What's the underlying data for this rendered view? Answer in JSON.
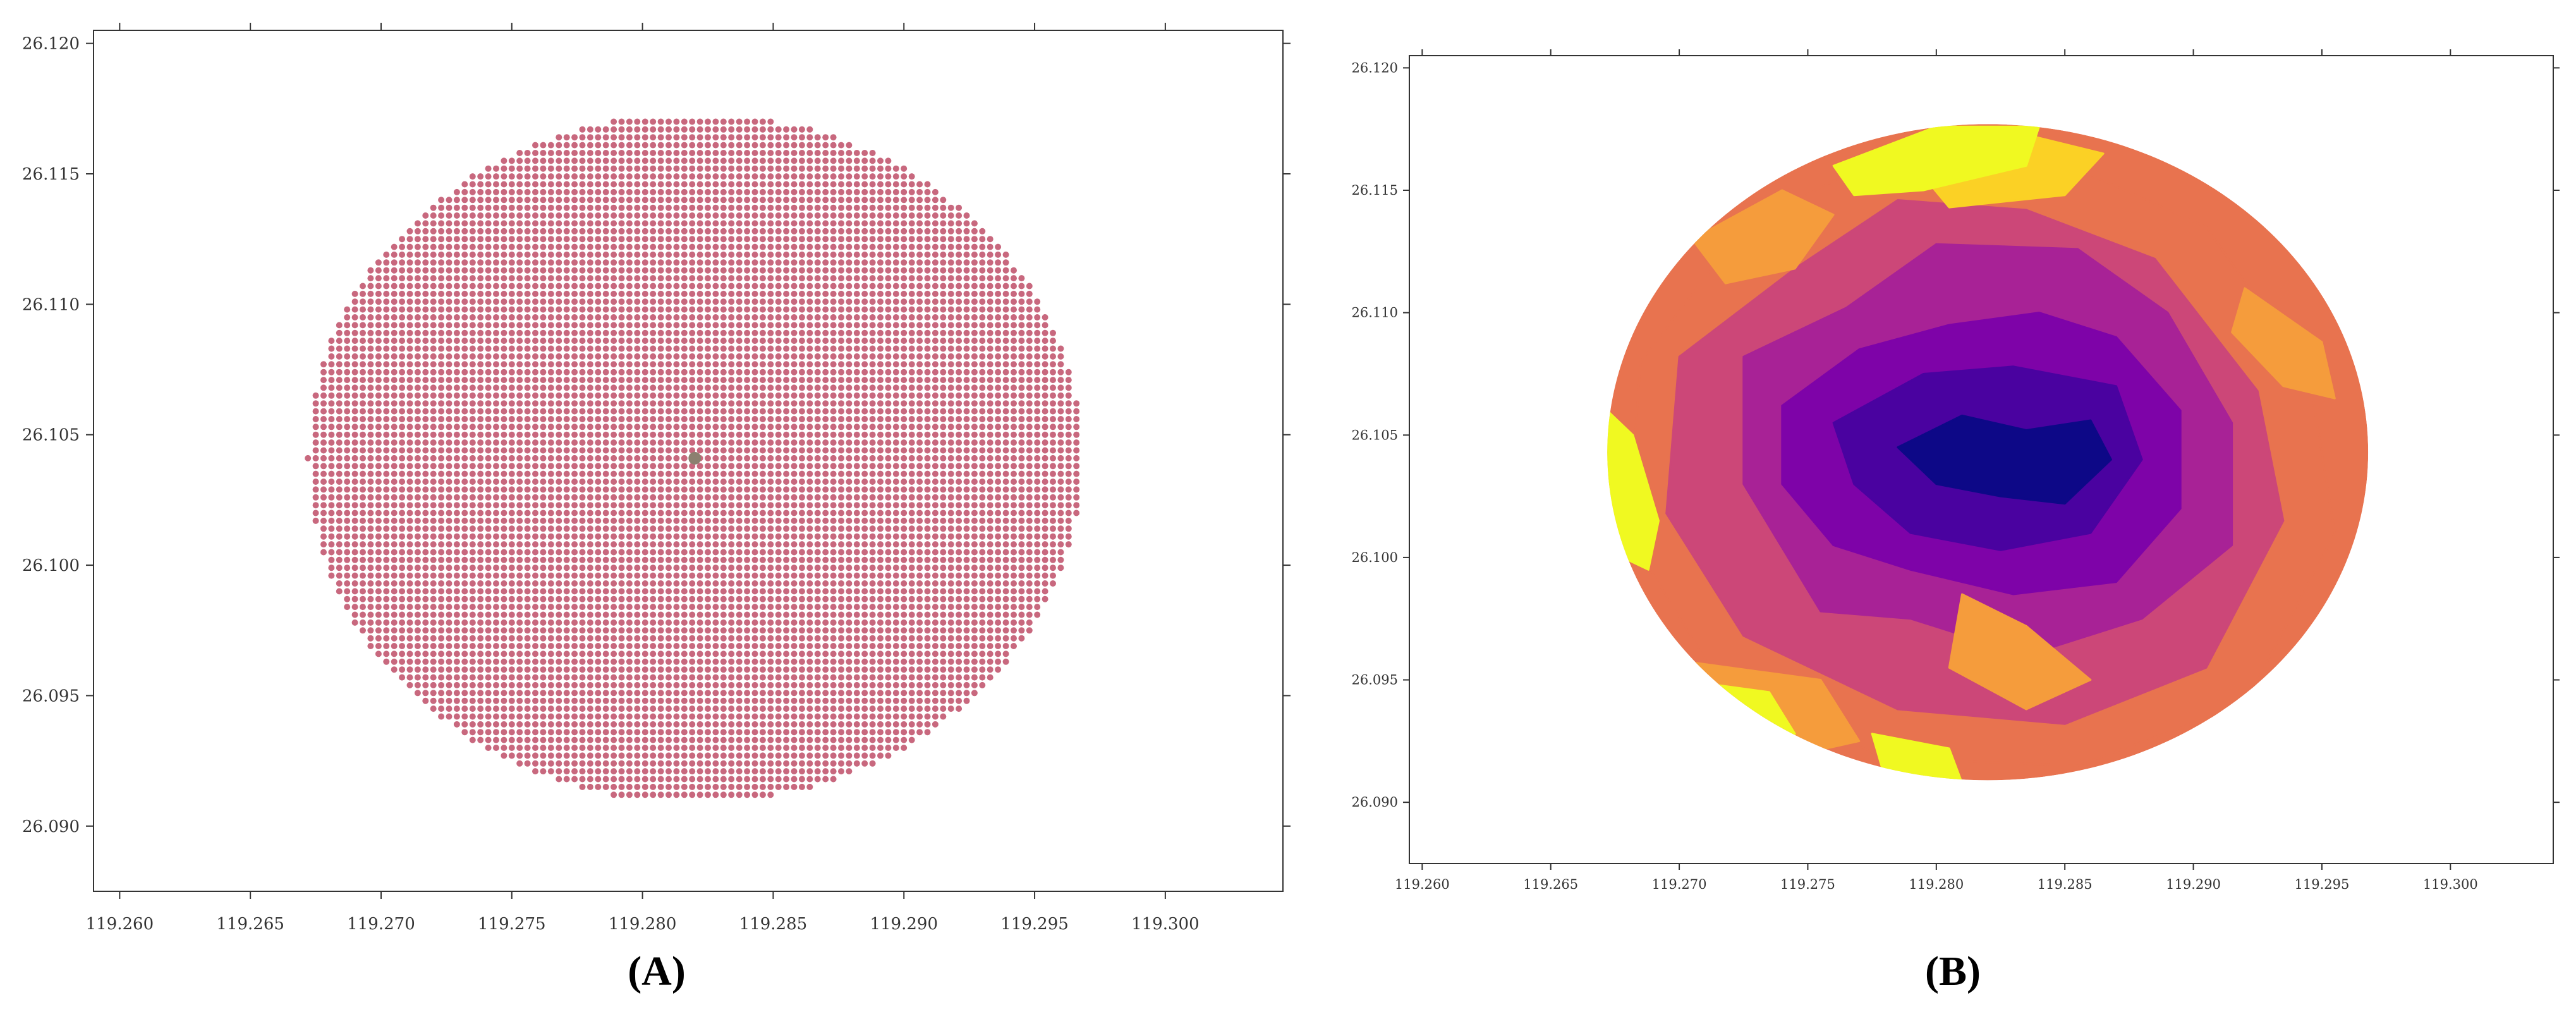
{
  "chart_data": [
    {
      "panel": "(A)",
      "type": "scatter",
      "title": "",
      "xlabel": "",
      "ylabel": "",
      "xlim": [
        119.259,
        119.3045
      ],
      "ylim": [
        26.0875,
        26.1205
      ],
      "x_ticks": [
        "119.260",
        "119.265",
        "119.270",
        "119.275",
        "119.280",
        "119.285",
        "119.290",
        "119.295",
        "119.300"
      ],
      "y_ticks": [
        "26.090",
        "26.095",
        "26.100",
        "26.105",
        "26.110",
        "26.115",
        "26.120"
      ],
      "grid_points": {
        "center": [
          119.282,
          26.1041
        ],
        "radius_x": 0.0148,
        "radius_y": 0.0132,
        "spacing_x": 0.0003,
        "spacing_y": 0.0003
      },
      "marker_color": "#c8687e",
      "center_marker": {
        "x": 119.282,
        "y": 26.1041,
        "color": "#8c8070"
      },
      "grid": false
    },
    {
      "panel": "(B)",
      "type": "heatmap",
      "title": "",
      "xlabel": "",
      "ylabel": "",
      "xlim": [
        119.2595,
        119.304
      ],
      "ylim": [
        26.0875,
        26.1205
      ],
      "x_ticks": [
        "119.260",
        "119.265",
        "119.270",
        "119.275",
        "119.280",
        "119.285",
        "119.290",
        "119.295",
        "119.300"
      ],
      "y_ticks": [
        "26.090",
        "26.095",
        "26.100",
        "26.105",
        "26.110",
        "26.115",
        "26.120"
      ],
      "colormap": [
        "#0d0887",
        "#4a02a0",
        "#7e03a8",
        "#a82296",
        "#cc4778",
        "#e8734f",
        "#f59c3c",
        "#fbd125",
        "#f0f921"
      ],
      "circle": {
        "center": [
          119.282,
          26.1043
        ],
        "radius_x": 0.0148,
        "radius_y": 0.0134
      },
      "zones": [
        {
          "level": 5,
          "polygon": [
            [
              119.2685,
              26.108
            ],
            [
              119.2725,
              26.1135
            ],
            [
              119.279,
              26.117
            ],
            [
              119.2835,
              26.1168
            ],
            [
              119.2905,
              26.1135
            ],
            [
              119.2945,
              26.1075
            ],
            [
              119.2955,
              26.101
            ],
            [
              119.292,
              26.094
            ],
            [
              119.2855,
              26.0915
            ],
            [
              119.278,
              26.0918
            ],
            [
              119.2715,
              26.095
            ],
            [
              119.268,
              26.101
            ]
          ]
        },
        {
          "level": 4,
          "polygon": [
            [
              119.27,
              26.1082
            ],
            [
              119.2745,
              26.1118
            ],
            [
              119.2785,
              26.1146
            ],
            [
              119.2835,
              26.1142
            ],
            [
              119.2885,
              26.1122
            ],
            [
              119.2925,
              26.1068
            ],
            [
              119.2935,
              26.1015
            ],
            [
              119.2905,
              26.0955
            ],
            [
              119.285,
              26.0932
            ],
            [
              119.2785,
              26.0938
            ],
            [
              119.2725,
              26.0968
            ],
            [
              119.2695,
              26.1018
            ]
          ]
        },
        {
          "level": 3,
          "polygon": [
            [
              119.2725,
              26.1082
            ],
            [
              119.2765,
              26.1102
            ],
            [
              119.28,
              26.1128
            ],
            [
              119.2855,
              26.1126
            ],
            [
              119.289,
              26.11
            ],
            [
              119.2915,
              26.1055
            ],
            [
              119.2915,
              26.1005
            ],
            [
              119.288,
              26.0975
            ],
            [
              119.2835,
              26.096
            ],
            [
              119.279,
              26.0975
            ],
            [
              119.2755,
              26.0978
            ],
            [
              119.2725,
              26.103
            ]
          ]
        },
        {
          "level": 2,
          "polygon": [
            [
              119.274,
              26.1062
            ],
            [
              119.277,
              26.1085
            ],
            [
              119.2805,
              26.1095
            ],
            [
              119.284,
              26.11
            ],
            [
              119.287,
              26.109
            ],
            [
              119.2895,
              26.106
            ],
            [
              119.2895,
              26.102
            ],
            [
              119.287,
              26.099
            ],
            [
              119.283,
              26.0985
            ],
            [
              119.279,
              26.0995
            ],
            [
              119.276,
              26.1005
            ],
            [
              119.274,
              26.103
            ]
          ]
        },
        {
          "level": 1,
          "polygon": [
            [
              119.276,
              26.1055
            ],
            [
              119.2795,
              26.1075
            ],
            [
              119.283,
              26.1078
            ],
            [
              119.287,
              26.107
            ],
            [
              119.288,
              26.104
            ],
            [
              119.286,
              26.101
            ],
            [
              119.2825,
              26.1003
            ],
            [
              119.279,
              26.101
            ],
            [
              119.2768,
              26.103
            ]
          ]
        },
        {
          "level": 0,
          "polygon": [
            [
              119.2785,
              26.1045
            ],
            [
              119.281,
              26.1058
            ],
            [
              119.2835,
              26.1052
            ],
            [
              119.286,
              26.1056
            ],
            [
              119.2868,
              26.104
            ],
            [
              119.285,
              26.1022
            ],
            [
              119.2825,
              26.1025
            ],
            [
              119.28,
              26.103
            ]
          ]
        },
        {
          "level": 6,
          "polygon": [
            [
              119.2705,
              26.113
            ],
            [
              119.274,
              26.115
            ],
            [
              119.276,
              26.114
            ],
            [
              119.2745,
              26.1118
            ],
            [
              119.2718,
              26.1112
            ]
          ]
        },
        {
          "level": 6,
          "polygon": [
            [
              119.292,
              26.111
            ],
            [
              119.295,
              26.1088
            ],
            [
              119.2955,
              26.1065
            ],
            [
              119.2935,
              26.107
            ],
            [
              119.2915,
              26.1092
            ]
          ]
        },
        {
          "level": 6,
          "polygon": [
            [
              119.2685,
              26.096
            ],
            [
              119.2755,
              26.095
            ],
            [
              119.277,
              26.0925
            ],
            [
              119.274,
              26.0918
            ],
            [
              119.27,
              26.093
            ]
          ]
        },
        {
          "level": 6,
          "polygon": [
            [
              119.281,
              26.0985
            ],
            [
              119.2835,
              26.0972
            ],
            [
              119.286,
              26.095
            ],
            [
              119.2835,
              26.0938
            ],
            [
              119.2805,
              26.0955
            ]
          ]
        },
        {
          "level": 7,
          "polygon": [
            [
              119.279,
              26.1162
            ],
            [
              119.283,
              26.1174
            ],
            [
              119.2865,
              26.1165
            ],
            [
              119.285,
              26.1148
            ],
            [
              119.2805,
              26.1143
            ]
          ]
        },
        {
          "level": 8,
          "polygon": [
            [
              119.276,
              26.116
            ],
            [
              119.28,
              26.1176
            ],
            [
              119.284,
              26.1176
            ],
            [
              119.2835,
              26.116
            ],
            [
              119.2795,
              26.115
            ],
            [
              119.2768,
              26.1148
            ]
          ]
        },
        {
          "level": 8,
          "polygon": [
            [
              119.2672,
              26.106
            ],
            [
              119.2682,
              26.105
            ],
            [
              119.2692,
              26.1015
            ],
            [
              119.2688,
              26.0995
            ],
            [
              119.2678,
              26.1
            ],
            [
              119.267,
              26.1035
            ]
          ]
        },
        {
          "level": 8,
          "polygon": [
            [
              119.27,
              26.095
            ],
            [
              119.2735,
              26.0945
            ],
            [
              119.2745,
              26.0928
            ],
            [
              119.2718,
              26.093
            ]
          ]
        },
        {
          "level": 8,
          "polygon": [
            [
              119.2775,
              26.0928
            ],
            [
              119.2805,
              26.0922
            ],
            [
              119.281,
              26.0908
            ],
            [
              119.278,
              26.091
            ]
          ]
        }
      ],
      "grid": false
    }
  ],
  "panel_labels": {
    "a": "(A)",
    "b": "(B)"
  }
}
